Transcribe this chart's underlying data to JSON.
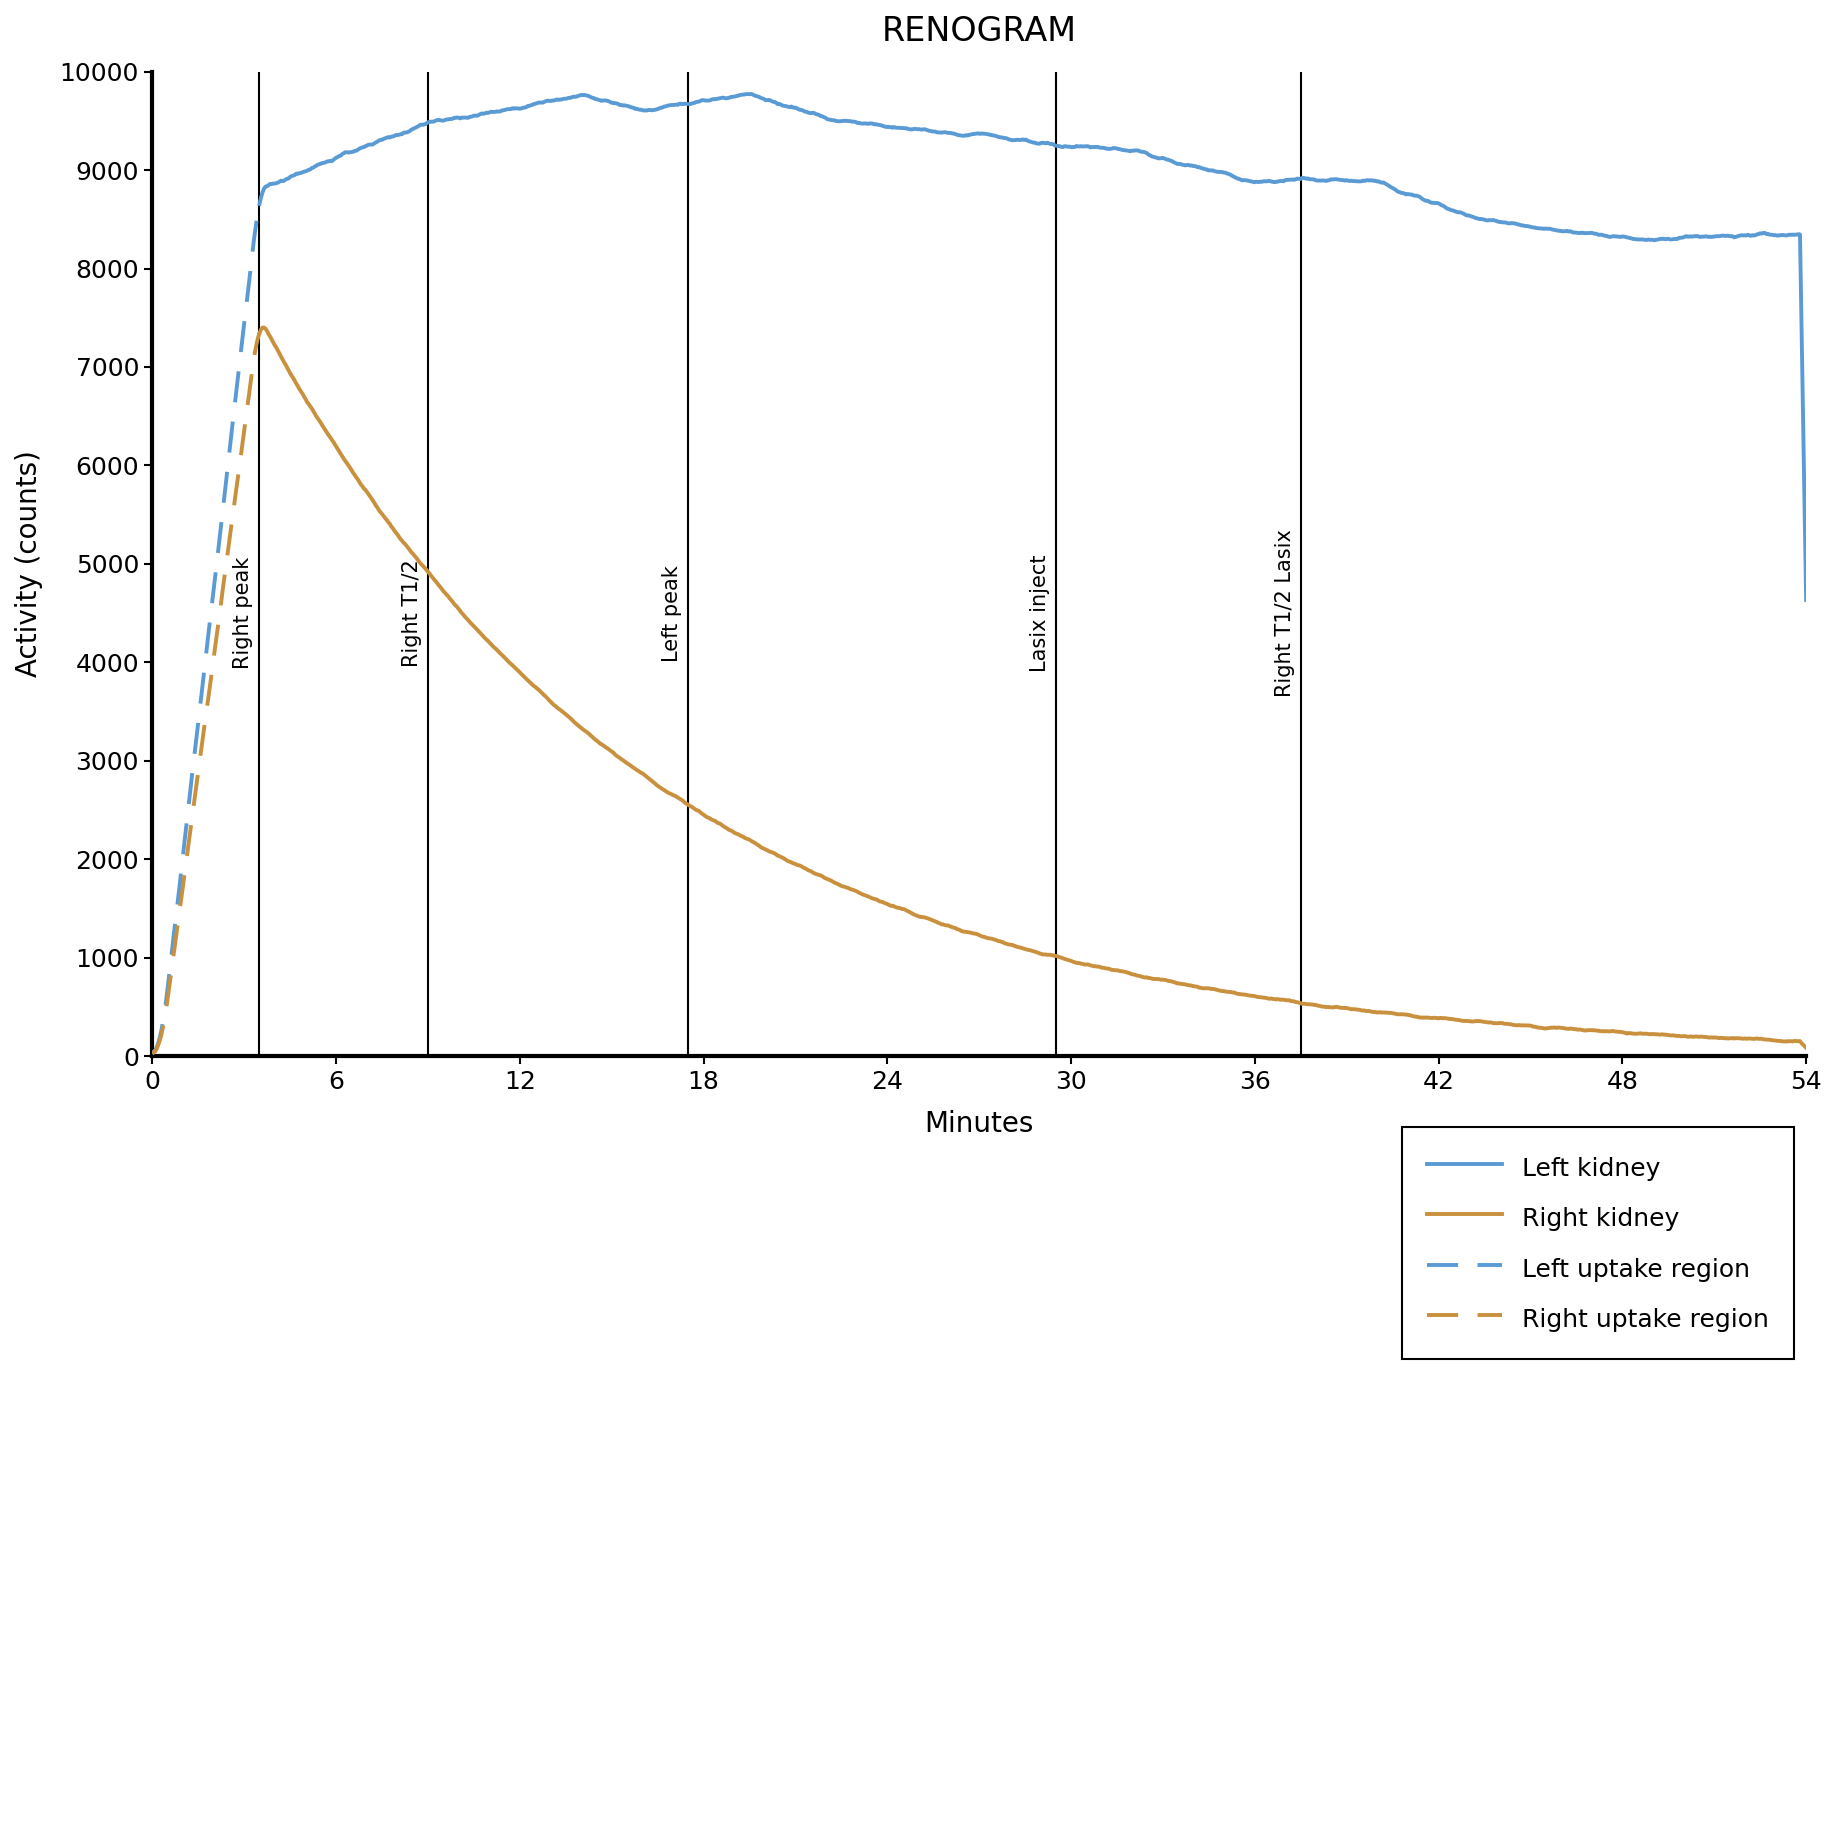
{
  "title": "RENOGRAM",
  "xlabel": "Minutes",
  "ylabel": "Activity (counts)",
  "xlim": [
    0,
    54
  ],
  "ylim": [
    0,
    10000
  ],
  "xticks": [
    0,
    6,
    12,
    18,
    24,
    30,
    36,
    42,
    48,
    54
  ],
  "yticks": [
    0,
    1000,
    2000,
    3000,
    4000,
    5000,
    6000,
    7000,
    8000,
    9000,
    10000
  ],
  "left_kidney_color": "#5B9BD5",
  "right_kidney_color": "#C9913D",
  "vlines": [
    {
      "x": 3.5,
      "label": "Right peak"
    },
    {
      "x": 9.0,
      "label": "Right T1/2"
    },
    {
      "x": 17.5,
      "label": "Left peak"
    },
    {
      "x": 29.5,
      "label": "Lasix inject"
    },
    {
      "x": 37.5,
      "label": "Right T1/2 Lasix"
    }
  ],
  "legend_labels": [
    "Left kidney",
    "Right kidney",
    "Left uptake region",
    "Right uptake region"
  ],
  "background_color": "#ffffff",
  "title_fontsize": 24,
  "axis_label_fontsize": 20,
  "tick_fontsize": 18,
  "vline_label_fontsize": 15,
  "uptake_end": 3.5
}
